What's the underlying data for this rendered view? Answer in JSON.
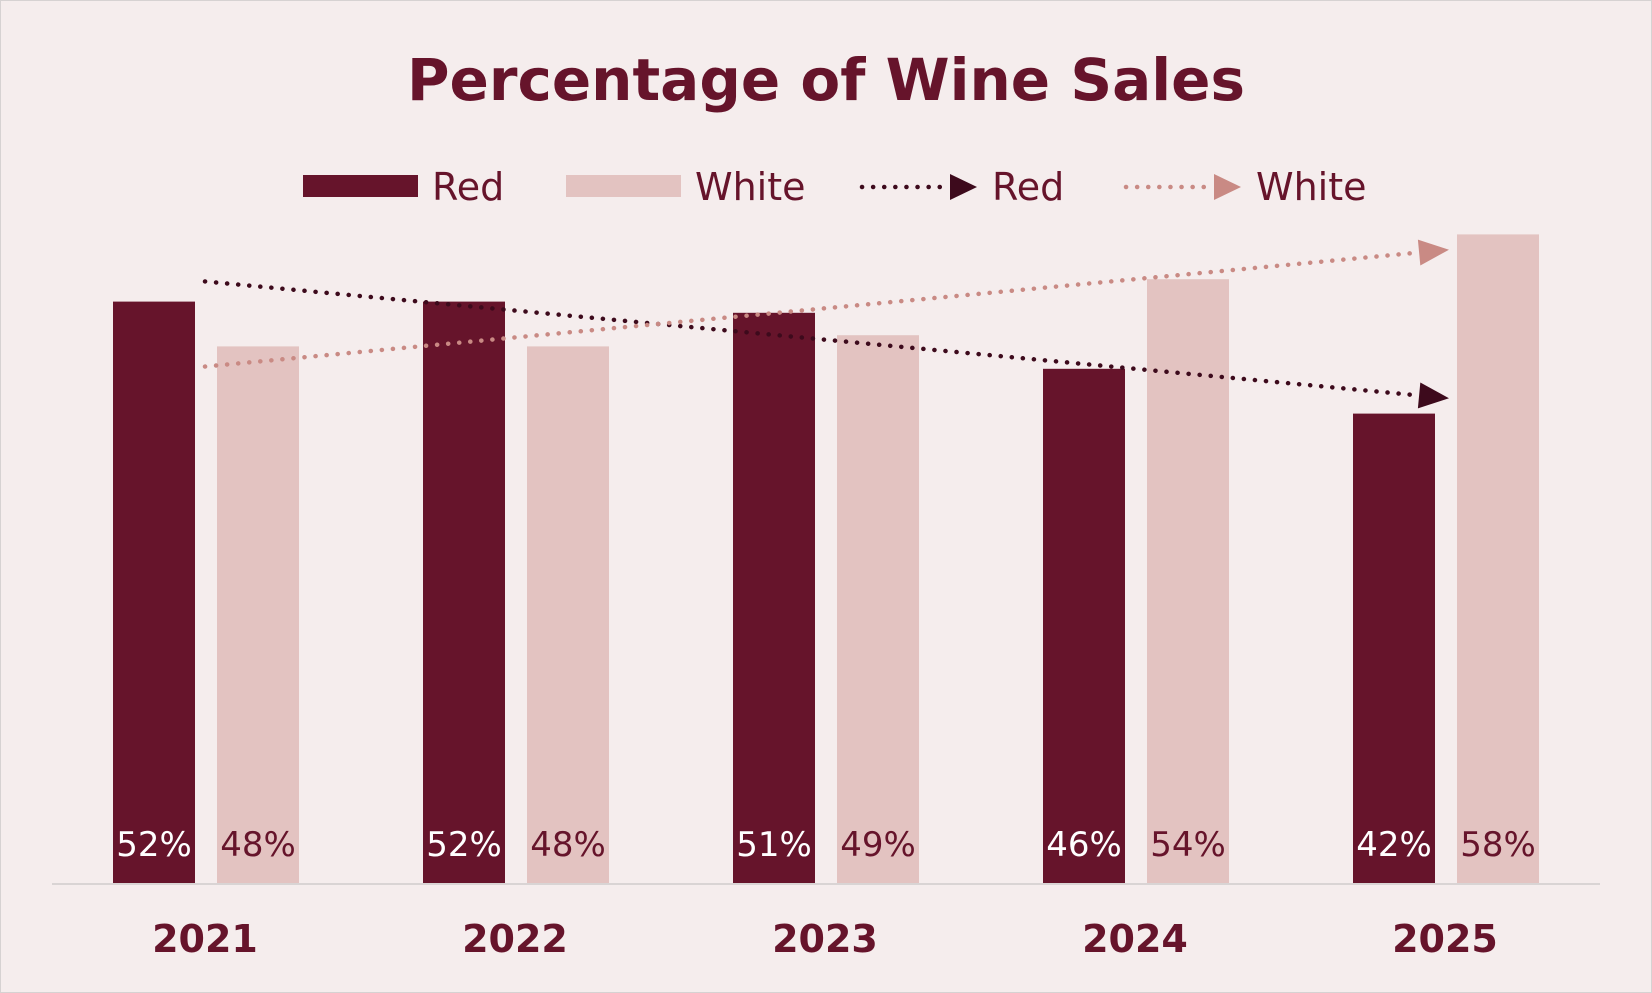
{
  "chart_data": {
    "type": "bar",
    "title": "Percentage of Wine Sales",
    "xlabel": "",
    "ylabel": "",
    "categories": [
      "2021",
      "2022",
      "2023",
      "2024",
      "2025"
    ],
    "series": [
      {
        "name": "Red",
        "values": [
          52,
          52,
          51,
          46,
          42
        ],
        "color": "#66142b",
        "labels": [
          "52%",
          "52%",
          "51%",
          "46%",
          "42%"
        ]
      },
      {
        "name": "White",
        "values": [
          48,
          48,
          49,
          54,
          58
        ],
        "color": "#e3c3c1",
        "labels": [
          "48%",
          "48%",
          "49%",
          "54%",
          "58%"
        ]
      }
    ],
    "trendlines": [
      {
        "name": "Red",
        "series": "Red",
        "style": "dotted-arrow",
        "color": "#3d0a1c"
      },
      {
        "name": "White",
        "series": "White",
        "style": "dotted-arrow",
        "color": "#c98a84"
      }
    ],
    "ylim": [
      0,
      100
    ],
    "grid": false,
    "legend_position": "top"
  }
}
